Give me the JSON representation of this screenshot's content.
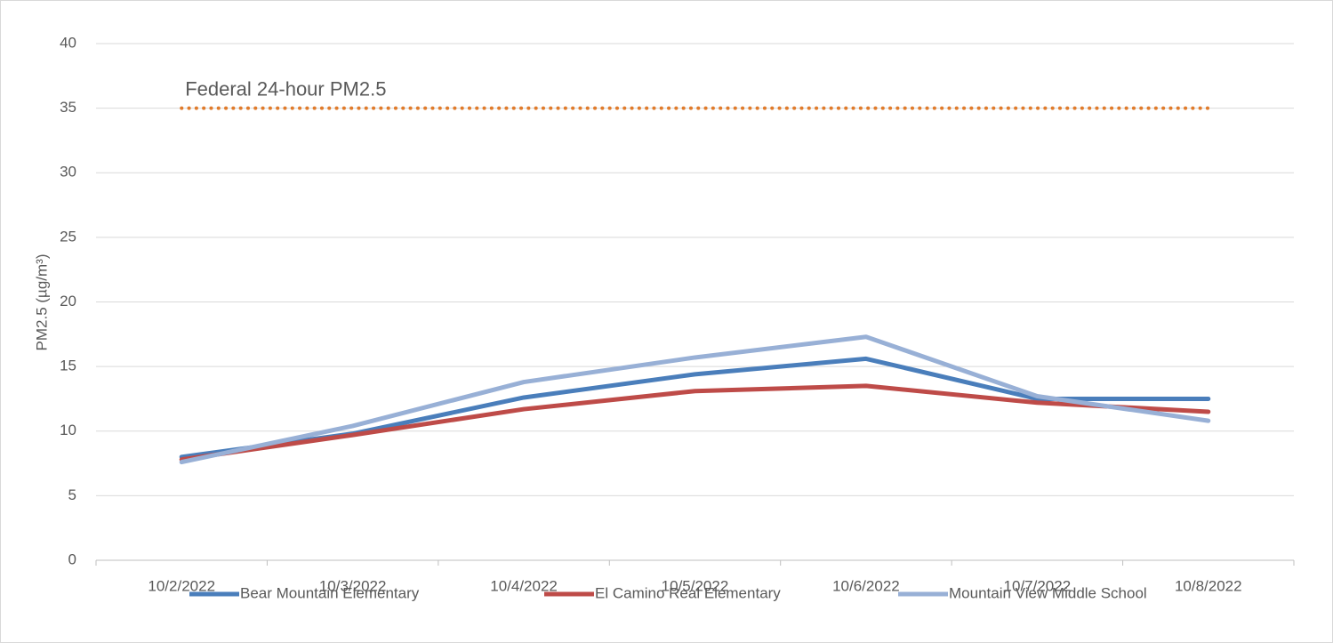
{
  "chart_data": {
    "type": "line",
    "y_label": "PM2.5 (µg/m³)",
    "categories": [
      "10/2/2022",
      "10/3/2022",
      "10/4/2022",
      "10/5/2022",
      "10/6/2022",
      "10/7/2022",
      "10/8/2022"
    ],
    "series": [
      {
        "name": "Bear Mountain Elementary",
        "color": "#4a7ebb",
        "values": [
          8.0,
          9.8,
          12.6,
          14.4,
          15.6,
          12.5,
          12.5
        ]
      },
      {
        "name": "El Camino Real Elementary",
        "color": "#be4b48",
        "values": [
          7.8,
          9.7,
          11.7,
          13.1,
          13.5,
          12.2,
          11.5
        ]
      },
      {
        "name": "Mountain View Middle School",
        "color": "#98b0d6",
        "values": [
          7.6,
          10.4,
          13.8,
          15.7,
          17.3,
          12.7,
          10.8
        ]
      }
    ],
    "reference_line": {
      "label": "Federal 24-hour PM2.5",
      "value": 35,
      "color": "#e07b2b"
    },
    "ylim": [
      0,
      40
    ],
    "yticks": [
      0,
      5,
      10,
      15,
      20,
      25,
      30,
      35,
      40
    ],
    "grid": true,
    "legend": "bottom"
  }
}
